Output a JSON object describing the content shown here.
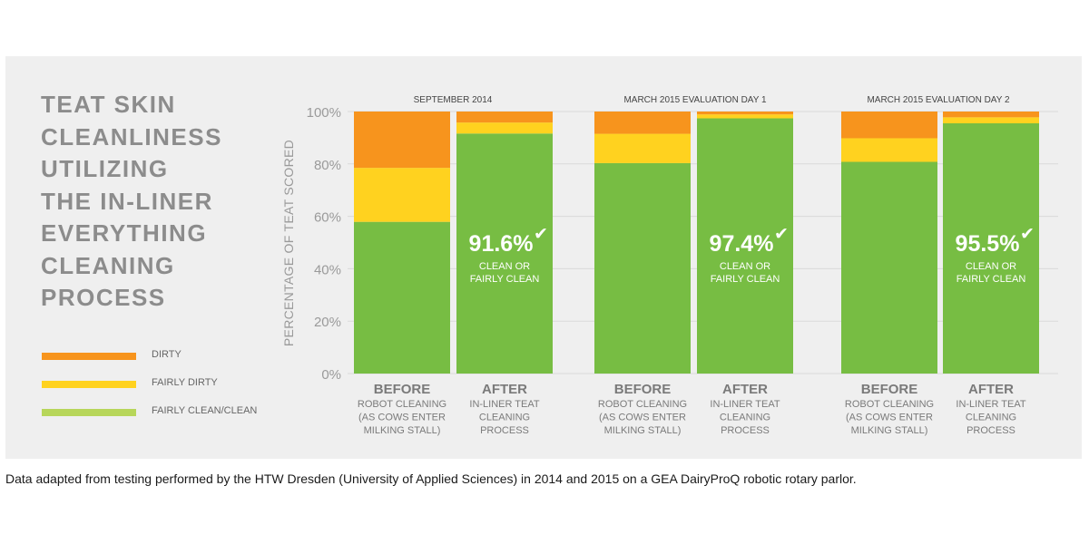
{
  "title_lines": [
    "TEAT SKIN",
    "CLEANLINESS",
    "UTILIZING",
    "THE IN-LINER",
    "EVERYTHING",
    "CLEANING",
    "PROCESS"
  ],
  "legend": [
    {
      "label": "DIRTY",
      "color": "#f7941d"
    },
    {
      "label": "FAIRLY DIRTY",
      "color": "#ffd21f"
    },
    {
      "label": "FAIRLY CLEAN/CLEAN",
      "color": "#b7d65a"
    }
  ],
  "caption": "Data adapted from testing performed by the HTW Dresden (University of Applied Sciences) in 2014 and 2015 on a GEA DairyProQ robotic rotary parlor.",
  "chart_data": {
    "type": "bar",
    "stacked": true,
    "ylabel": "PERCENTAGE OF TEAT SCORED",
    "ylim": [
      0,
      100
    ],
    "y_ticks": [
      0,
      20,
      40,
      60,
      80,
      100
    ],
    "y_tick_labels": [
      "0%",
      "20%",
      "40%",
      "60%",
      "80%",
      "100%"
    ],
    "group_labels": [
      "SEPTEMBER 2014",
      "MARCH 2015 EVALUATION DAY 1",
      "MARCH 2015 EVALUATION DAY 2"
    ],
    "categories": [
      {
        "group": 0,
        "title": "BEFORE",
        "sub": [
          "ROBOT CLEANING",
          "(AS COWS ENTER",
          "MILKING STALL)"
        ]
      },
      {
        "group": 0,
        "title": "AFTER",
        "sub": [
          "IN-LINER TEAT",
          "CLEANING",
          "PROCESS"
        ]
      },
      {
        "group": 1,
        "title": "BEFORE",
        "sub": [
          "ROBOT CLEANING",
          "(AS COWS ENTER",
          "MILKING STALL)"
        ]
      },
      {
        "group": 1,
        "title": "AFTER",
        "sub": [
          "IN-LINER TEAT",
          "CLEANING",
          "PROCESS"
        ]
      },
      {
        "group": 2,
        "title": "BEFORE",
        "sub": [
          "ROBOT CLEANING",
          "(AS COWS ENTER",
          "MILKING STALL)"
        ]
      },
      {
        "group": 2,
        "title": "AFTER",
        "sub": [
          "IN-LINER TEAT",
          "CLEANING",
          "PROCESS"
        ]
      }
    ],
    "series": [
      {
        "name": "FAIRLY CLEAN/CLEAN",
        "color": "#77bd43",
        "values": [
          57.9,
          91.6,
          80.3,
          97.4,
          80.8,
          95.5
        ]
      },
      {
        "name": "FAIRLY DIRTY",
        "color": "#ffd21f",
        "values": [
          20.6,
          4.2,
          11.2,
          1.5,
          9.0,
          2.3
        ]
      },
      {
        "name": "DIRTY",
        "color": "#f7941d",
        "values": [
          21.5,
          4.2,
          8.5,
          1.1,
          10.2,
          2.2
        ]
      }
    ],
    "annotations": [
      {
        "bar": 1,
        "value": "91.6%",
        "check": "✔",
        "text": [
          "CLEAN OR",
          "FAIRLY CLEAN"
        ]
      },
      {
        "bar": 3,
        "value": "97.4%",
        "check": "✔",
        "text": [
          "CLEAN OR",
          "FAIRLY CLEAN"
        ]
      },
      {
        "bar": 5,
        "value": "95.5%",
        "check": "✔",
        "text": [
          "CLEAN OR",
          "FAIRLY CLEAN"
        ]
      }
    ]
  }
}
